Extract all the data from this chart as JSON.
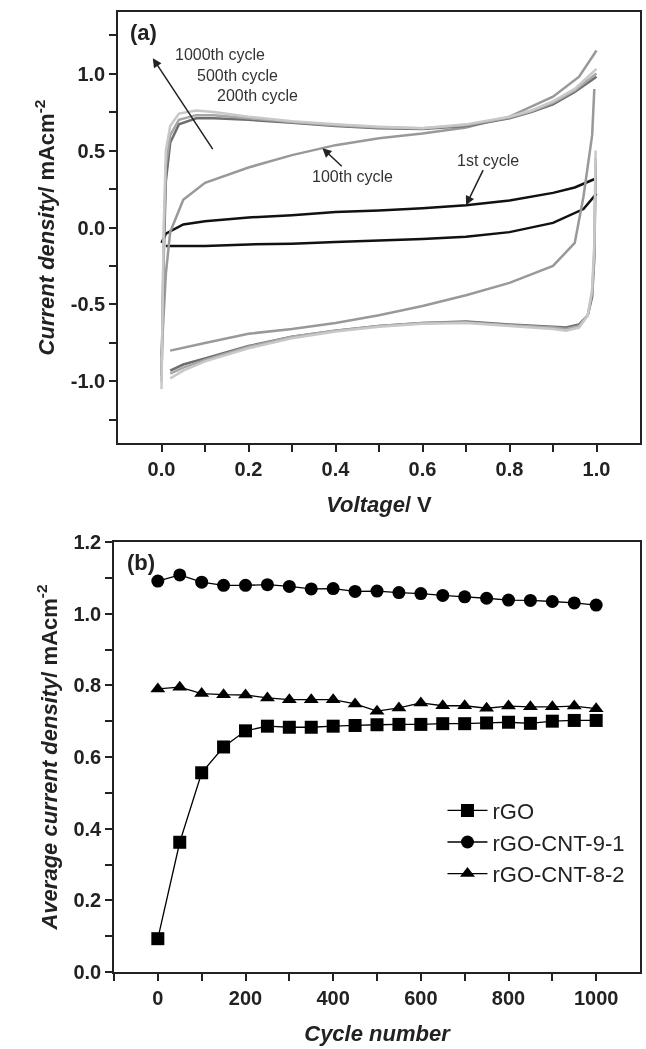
{
  "chart_data": [
    {
      "type": "line",
      "xlabel": "Voltage/ V",
      "ylabel": "Current density/ mAcm$^{-2}$",
      "xlim": [
        -0.1,
        1.1
      ],
      "ylim": [
        -1.4,
        1.4
      ],
      "xticks": [
        {
          "value": 0,
          "label": "0.0"
        },
        {
          "value": 0.1,
          "label": null
        },
        {
          "value": 0.2,
          "label": "0.2"
        },
        {
          "value": 0.3,
          "label": null
        },
        {
          "value": 0.4,
          "label": "0.4"
        },
        {
          "value": 0.5,
          "label": null
        },
        {
          "value": 0.6,
          "label": "0.6"
        },
        {
          "value": 0.7,
          "label": null
        },
        {
          "value": 0.8,
          "label": "0.8"
        },
        {
          "value": 0.9,
          "label": null
        },
        {
          "value": 1.0,
          "label": "1.0"
        }
      ],
      "yticks": [
        {
          "value": -1.25,
          "label": null
        },
        {
          "value": -1.0,
          "label": "-1.0"
        },
        {
          "value": -0.75,
          "label": null
        },
        {
          "value": -0.5,
          "label": "-0.5"
        },
        {
          "value": -0.25,
          "label": null
        },
        {
          "value": 0,
          "label": "0.0"
        },
        {
          "value": 0.25,
          "label": null
        },
        {
          "value": 0.5,
          "label": "0.5"
        },
        {
          "value": 0.75,
          "label": null
        },
        {
          "value": 1.0,
          "label": "1.0"
        },
        {
          "value": 1.25,
          "label": null
        }
      ],
      "legend": false,
      "marker": "none",
      "line_style": "solid",
      "annotations": [
        "(a)",
        "1000th cycle",
        "500th cycle",
        "200th cycle",
        {
          "text": "100th cycle",
          "x": 0.37,
          "y": 0.515
        },
        {
          "text": "1st cycle",
          "x": 0.7,
          "y": 0.145
        }
      ],
      "series": [
        {
          "color": "#111111",
          "x": [
            0,
            0.01,
            0.05,
            0.1,
            0.2,
            0.3,
            0.4,
            0.5,
            0.6,
            0.7,
            0.8,
            0.9,
            0.95,
            1.0
          ],
          "values": [
            -0.1,
            -0.04,
            0.02,
            0.04,
            0.065,
            0.08,
            0.1,
            0.11,
            0.125,
            0.145,
            0.175,
            0.225,
            0.26,
            0.32
          ]
        },
        {
          "color": "#111111",
          "x": [
            1.0,
            0.97,
            0.9,
            0.8,
            0.7,
            0.6,
            0.5,
            0.4,
            0.3,
            0.2,
            0.1,
            0.01
          ],
          "values": [
            0.22,
            0.12,
            0.03,
            -0.03,
            -0.06,
            -0.075,
            -0.085,
            -0.095,
            -0.105,
            -0.11,
            -0.12,
            -0.12
          ]
        },
        {
          "color": "#999999",
          "x": [
            0,
            0.01,
            0.02,
            0.05,
            0.1,
            0.2,
            0.3,
            0.4,
            0.5,
            0.6,
            0.7,
            0.8,
            0.9,
            0.96,
            1.0
          ],
          "values": [
            -0.83,
            -0.3,
            -0.03,
            0.18,
            0.29,
            0.39,
            0.47,
            0.535,
            0.58,
            0.61,
            0.65,
            0.72,
            0.85,
            0.98,
            1.15
          ]
        },
        {
          "color": "#999999",
          "x": [
            0.995,
            0.99,
            0.97,
            0.95,
            0.9,
            0.8,
            0.7,
            0.6,
            0.5,
            0.4,
            0.3,
            0.2,
            0.1,
            0.02
          ],
          "values": [
            0.9,
            0.6,
            0.2,
            -0.1,
            -0.25,
            -0.36,
            -0.44,
            -0.51,
            -0.57,
            -0.62,
            -0.66,
            -0.69,
            -0.75,
            -0.8
          ]
        },
        {
          "color": "#6e6e6e",
          "x": [
            0,
            0.005,
            0.01,
            0.02,
            0.04,
            0.08,
            0.12,
            0.2,
            0.3,
            0.4,
            0.5,
            0.6,
            0.7,
            0.8,
            0.85,
            0.9,
            0.95,
            1.0
          ],
          "values": [
            -0.96,
            -0.2,
            0.3,
            0.55,
            0.67,
            0.71,
            0.71,
            0.7,
            0.68,
            0.66,
            0.645,
            0.64,
            0.66,
            0.71,
            0.75,
            0.8,
            0.88,
            0.98
          ]
        },
        {
          "color": "#6e6e6e",
          "x": [
            0.998,
            0.995,
            0.99,
            0.98,
            0.96,
            0.93,
            0.9,
            0.8,
            0.7,
            0.6,
            0.5,
            0.4,
            0.3,
            0.2,
            0.1,
            0.05,
            0.02
          ],
          "values": [
            0.4,
            -0.2,
            -0.45,
            -0.57,
            -0.63,
            -0.65,
            -0.645,
            -0.63,
            -0.61,
            -0.62,
            -0.64,
            -0.67,
            -0.71,
            -0.77,
            -0.85,
            -0.89,
            -0.93
          ]
        },
        {
          "color": "#a6a6a6",
          "x": [
            0,
            0.005,
            0.01,
            0.02,
            0.04,
            0.08,
            0.12,
            0.2,
            0.3,
            0.4,
            0.5,
            0.6,
            0.7,
            0.8,
            0.85,
            0.9,
            0.95,
            1.0
          ],
          "values": [
            -1.0,
            -0.1,
            0.4,
            0.6,
            0.7,
            0.73,
            0.73,
            0.71,
            0.685,
            0.665,
            0.65,
            0.645,
            0.665,
            0.715,
            0.755,
            0.81,
            0.89,
            1.0
          ]
        },
        {
          "color": "#a6a6a6",
          "x": [
            0.998,
            0.995,
            0.99,
            0.98,
            0.96,
            0.93,
            0.9,
            0.8,
            0.7,
            0.6,
            0.5,
            0.4,
            0.3,
            0.2,
            0.1,
            0.05,
            0.02
          ],
          "values": [
            0.45,
            -0.15,
            -0.42,
            -0.57,
            -0.64,
            -0.66,
            -0.65,
            -0.635,
            -0.615,
            -0.62,
            -0.64,
            -0.67,
            -0.71,
            -0.775,
            -0.86,
            -0.91,
            -0.95
          ]
        },
        {
          "color": "#c8c8c8",
          "x": [
            0,
            0.005,
            0.01,
            0.02,
            0.04,
            0.08,
            0.12,
            0.2,
            0.3,
            0.4,
            0.5,
            0.6,
            0.7,
            0.8,
            0.85,
            0.9,
            0.95,
            1.0
          ],
          "values": [
            -1.05,
            0.0,
            0.5,
            0.66,
            0.74,
            0.76,
            0.75,
            0.72,
            0.69,
            0.67,
            0.655,
            0.645,
            0.67,
            0.72,
            0.76,
            0.82,
            0.9,
            1.03
          ]
        },
        {
          "color": "#c8c8c8",
          "x": [
            0.998,
            0.995,
            0.99,
            0.98,
            0.96,
            0.93,
            0.9,
            0.8,
            0.7,
            0.6,
            0.5,
            0.4,
            0.3,
            0.2,
            0.1,
            0.05,
            0.02
          ],
          "values": [
            0.5,
            -0.1,
            -0.4,
            -0.57,
            -0.65,
            -0.67,
            -0.66,
            -0.64,
            -0.62,
            -0.625,
            -0.645,
            -0.675,
            -0.72,
            -0.785,
            -0.87,
            -0.93,
            -0.98
          ]
        }
      ]
    },
    {
      "type": "line",
      "xlabel": "Cycle number",
      "ylabel": "Average current density/ mAcm$^{-2}$",
      "xlim": [
        -100,
        1100
      ],
      "ylim": [
        0,
        1.2
      ],
      "x": [
        0,
        50,
        100,
        150,
        200,
        250,
        300,
        350,
        400,
        450,
        500,
        550,
        600,
        650,
        700,
        750,
        800,
        850,
        900,
        950,
        1000
      ],
      "xticks": [
        {
          "value": -100,
          "label": null
        },
        0,
        {
          "value": 100,
          "label": null
        },
        200,
        {
          "value": 300,
          "label": null
        },
        400,
        {
          "value": 500,
          "label": null
        },
        600,
        {
          "value": 700,
          "label": null
        },
        800,
        {
          "value": 900,
          "label": null
        },
        1000
      ],
      "yticks": [
        {
          "value": 0,
          "label": "0.0"
        },
        {
          "value": 0.1,
          "label": null
        },
        {
          "value": 0.2,
          "label": "0.2"
        },
        {
          "value": 0.3,
          "label": null
        },
        {
          "value": 0.4,
          "label": "0.4"
        },
        {
          "value": 0.5,
          "label": null
        },
        {
          "value": 0.6,
          "label": "0.6"
        },
        {
          "value": 0.7,
          "label": null
        },
        {
          "value": 0.8,
          "label": "0.8"
        },
        {
          "value": 0.9,
          "label": null
        },
        {
          "value": 1.0,
          "label": "1.0"
        },
        {
          "value": 1.1,
          "label": null
        },
        {
          "value": 1.2,
          "label": "1.2"
        }
      ],
      "legend": "bottom right",
      "line_style": "solid",
      "annotations": [
        "(b)"
      ],
      "series": [
        {
          "name": "rGO",
          "color": "#000000",
          "marker": "square",
          "values": [
            0.093,
            0.362,
            0.556,
            0.628,
            0.673,
            0.686,
            0.683,
            0.683,
            0.686,
            0.688,
            0.69,
            0.691,
            0.691,
            0.693,
            0.693,
            0.695,
            0.697,
            0.694,
            0.7,
            0.702,
            0.702
          ]
        },
        {
          "name": "rGO-CNT-9-1",
          "color": "#000000",
          "marker": "circle",
          "values": [
            1.091,
            1.108,
            1.088,
            1.079,
            1.079,
            1.081,
            1.076,
            1.069,
            1.07,
            1.062,
            1.063,
            1.059,
            1.056,
            1.051,
            1.047,
            1.043,
            1.038,
            1.037,
            1.034,
            1.03,
            1.024
          ]
        },
        {
          "name": "rGO-CNT-8-2",
          "color": "#000000",
          "marker": "triangle",
          "values": [
            0.79,
            0.795,
            0.777,
            0.774,
            0.773,
            0.765,
            0.76,
            0.76,
            0.76,
            0.748,
            0.728,
            0.737,
            0.751,
            0.743,
            0.743,
            0.736,
            0.742,
            0.74,
            0.74,
            0.742,
            0.735
          ]
        }
      ]
    }
  ]
}
